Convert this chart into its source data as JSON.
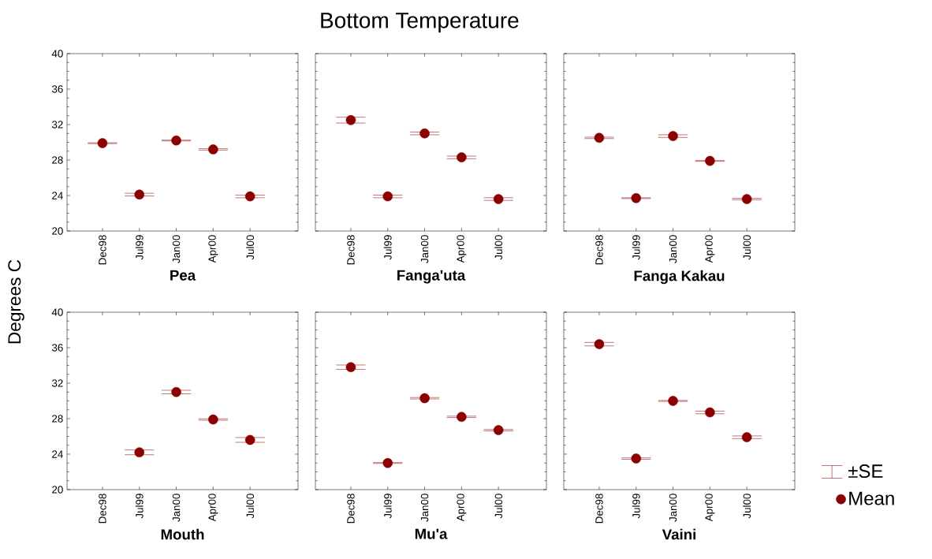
{
  "chart_data": [
    {
      "type": "scatter",
      "ylabel": "Degrees C",
      "xlabel": "Pea",
      "categories": [
        "Dec98",
        "Jul99",
        "Jan00",
        "Apr00",
        "Jul00"
      ],
      "marker": "circle",
      "ylim": [
        20,
        40
      ],
      "yticks": [
        20,
        24,
        28,
        32,
        36,
        40
      ],
      "series": [
        {
          "color": "#8b0000",
          "values": [
            29.9,
            24.1,
            30.2,
            29.2,
            23.9
          ],
          "errors": [
            0.05,
            0.15,
            0.05,
            0.08,
            0.15
          ]
        }
      ]
    },
    {
      "type": "scatter",
      "title": "Bottom Temperature",
      "xlabel": "Fanga'uta",
      "categories": [
        "Dec98",
        "Jul99",
        "Jan00",
        "Apr00",
        "Jul00"
      ],
      "marker": "circle",
      "ylim": [
        20,
        40
      ],
      "yticks": [
        20,
        24,
        28,
        32,
        36,
        40
      ],
      "tick_labels": "x",
      "series": [
        {
          "color": "#8b0000",
          "values": [
            32.5,
            23.9,
            31.0,
            28.3,
            23.6
          ],
          "errors": [
            0.33,
            0.15,
            0.15,
            0.15,
            0.15
          ]
        }
      ]
    },
    {
      "type": "scatter",
      "xlabel": "Fanga Kakau",
      "categories": [
        "Dec98",
        "Jul99",
        "Jan00",
        "Apr00",
        "Jul00"
      ],
      "marker": "circle",
      "ylim": [
        20,
        40
      ],
      "yticks": [
        20,
        24,
        28,
        32,
        36,
        40
      ],
      "tick_labels": "x",
      "series": [
        {
          "color": "#8b0000",
          "values": [
            30.5,
            23.7,
            30.7,
            27.9,
            23.6
          ],
          "errors": [
            0.08,
            0.05,
            0.15,
            0.05,
            0.08
          ]
        }
      ]
    },
    {
      "type": "scatter",
      "xlabel": "Mouth",
      "categories": [
        "Dec98",
        "Jul99",
        "Jan00",
        "Apr00",
        "Jul00"
      ],
      "marker": "circle",
      "ylim": [
        20,
        40
      ],
      "yticks": [
        20,
        24,
        28,
        32,
        36,
        40
      ],
      "series": [
        {
          "color": "#8b0000",
          "values": [
            null,
            24.2,
            31.0,
            27.9,
            25.6
          ],
          "errors": [
            null,
            0.27,
            0.2,
            0.08,
            0.27
          ]
        }
      ]
    },
    {
      "type": "scatter",
      "xlabel": "Mu'a",
      "categories": [
        "Dec98",
        "Jul99",
        "Jan00",
        "Apr00",
        "Jul00"
      ],
      "marker": "circle",
      "ylim": [
        20,
        40
      ],
      "yticks": [
        20,
        24,
        28,
        32,
        36,
        40
      ],
      "tick_labels": "x",
      "series": [
        {
          "color": "#8b0000",
          "values": [
            33.8,
            23.0,
            30.3,
            28.2,
            26.7
          ],
          "errors": [
            0.25,
            0.05,
            0.08,
            0.08,
            0.08
          ]
        }
      ]
    },
    {
      "type": "scatter",
      "xlabel": "Vaini",
      "categories": [
        "Dec98",
        "Jul99",
        "Jan00",
        "Apr00",
        "Jul00"
      ],
      "marker": "circle",
      "ylim": [
        20,
        40
      ],
      "yticks": [
        20,
        24,
        28,
        32,
        36,
        40
      ],
      "tick_labels": "x",
      "legend": "right",
      "annotations": [
        "±SE"
      ],
      "series": [
        {
          "name": "Mean",
          "color": "#8b0000",
          "values": [
            36.4,
            23.5,
            30.0,
            28.7,
            25.9
          ],
          "errors": [
            0.2,
            0.08,
            0.05,
            0.15,
            0.15
          ]
        }
      ]
    }
  ]
}
